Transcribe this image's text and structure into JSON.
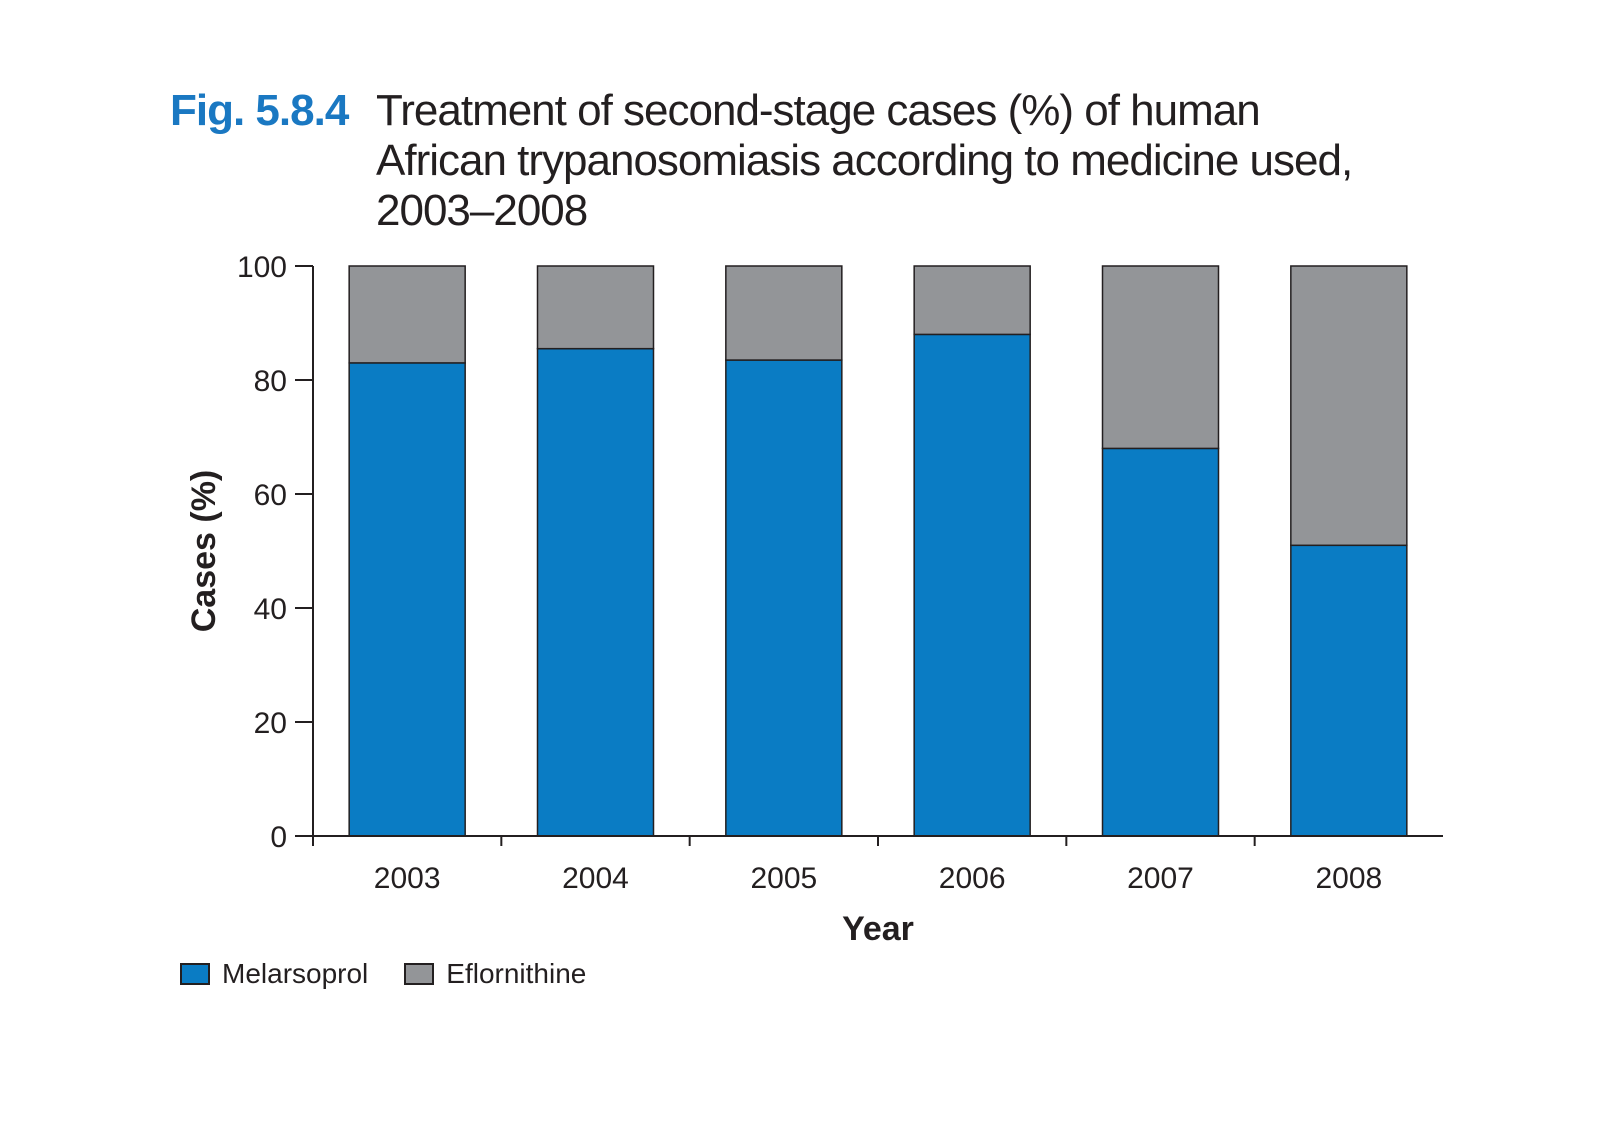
{
  "figure": {
    "number": "Fig. 5.8.4",
    "title_lines": [
      "Treatment of second-stage cases (%) of human",
      "African trypanosomiasis according to medicine used,",
      "2003–2008"
    ]
  },
  "colors": {
    "melarsoprol": "#0a7cc4",
    "eflornithine": "#939598",
    "figure_number": "#1a78c2",
    "axis": "#231f20"
  },
  "legend": {
    "items": [
      {
        "label": "Melarsoprol",
        "color_key": "melarsoprol"
      },
      {
        "label": "Eflornithine",
        "color_key": "eflornithine"
      }
    ]
  },
  "chart_data": {
    "type": "bar",
    "stacked": true,
    "categories": [
      "2003",
      "2004",
      "2005",
      "2006",
      "2007",
      "2008"
    ],
    "series": [
      {
        "name": "Melarsoprol",
        "values": [
          83,
          85.5,
          83.5,
          88,
          68,
          51
        ]
      },
      {
        "name": "Eflornithine",
        "values": [
          17,
          14.5,
          16.5,
          12,
          32,
          49
        ]
      }
    ],
    "xlabel": "Year",
    "ylabel": "Cases (%)",
    "ylim": [
      0,
      100
    ],
    "yticks": [
      0,
      20,
      40,
      60,
      80,
      100
    ],
    "grid": false,
    "legend_position": "bottom-left"
  }
}
